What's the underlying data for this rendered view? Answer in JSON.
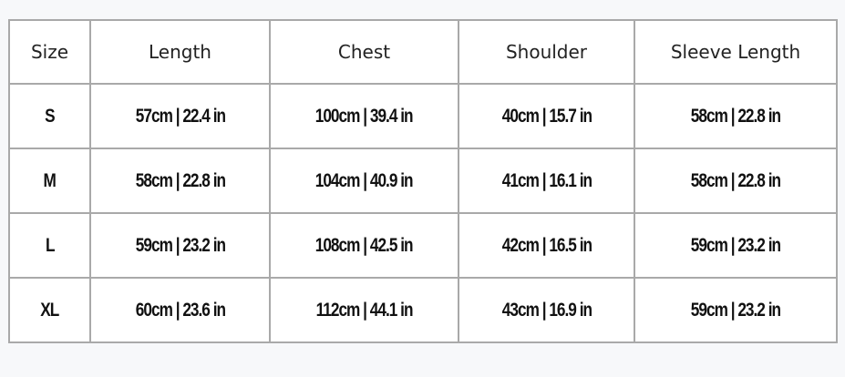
{
  "table": {
    "header": [
      "Size",
      "Length",
      "Chest",
      "Shoulder",
      "Sleeve Length"
    ],
    "rows": [
      [
        "S",
        "57cm | 22.4 in",
        "100cm | 39.4 in",
        "40cm | 15.7 in",
        "58cm | 22.8 in"
      ],
      [
        "M",
        "58cm | 22.8 in",
        "104cm | 40.9 in",
        "41cm | 16.1 in",
        "58cm | 22.8 in"
      ],
      [
        "L",
        "59cm | 23.2 in",
        "108cm | 42.5 in",
        "42cm | 16.5 in",
        "59cm | 23.2 in"
      ],
      [
        "XL",
        "60cm | 23.6 in",
        "112cm | 44.1 in",
        "43cm | 16.9 in",
        "59cm | 23.2 in"
      ]
    ]
  }
}
